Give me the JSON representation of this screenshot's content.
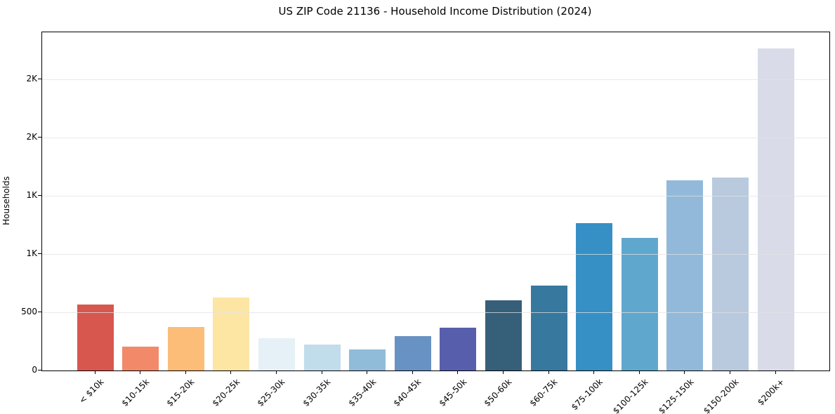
{
  "chart_data": {
    "type": "bar",
    "title": "US ZIP Code 21136 - Household Income Distribution (2024)",
    "ylabel": "Households",
    "xlabel": "",
    "categories": [
      "< $10k",
      "$10-15k",
      "$15-20k",
      "$20-25k",
      "$25-30k",
      "$30-35k",
      "$35-40k",
      "$40-45k",
      "$45-50k",
      "$50-60k",
      "$60-75k",
      "$75-100k",
      "$100-125k",
      "$125-150k",
      "$150-200k",
      "$200k+"
    ],
    "values": [
      565,
      205,
      375,
      625,
      280,
      225,
      180,
      295,
      370,
      605,
      730,
      1265,
      1140,
      1635,
      1655,
      2765
    ],
    "bar_colors": [
      "#d7574f",
      "#f28a6a",
      "#fbbd78",
      "#fde5a4",
      "#e5f1f6",
      "#c1ddec",
      "#90bcda",
      "#6892c3",
      "#575fad",
      "#365f79",
      "#36789e",
      "#3690c5",
      "#60a7ce",
      "#92b9da",
      "#b9cade",
      "#d9dbe8"
    ],
    "ylim": [
      0,
      2904
    ],
    "yticks": [
      {
        "value": 0,
        "label": "0"
      },
      {
        "value": 500,
        "label": "500"
      },
      {
        "value": 1000,
        "label": "1K"
      },
      {
        "value": 1500,
        "label": "1K"
      },
      {
        "value": 2000,
        "label": "2K"
      },
      {
        "value": 2500,
        "label": "2K"
      }
    ],
    "grid": "horizontal-only",
    "legend": "none",
    "background_color": "#ffffff",
    "spine_color": "#000000"
  }
}
